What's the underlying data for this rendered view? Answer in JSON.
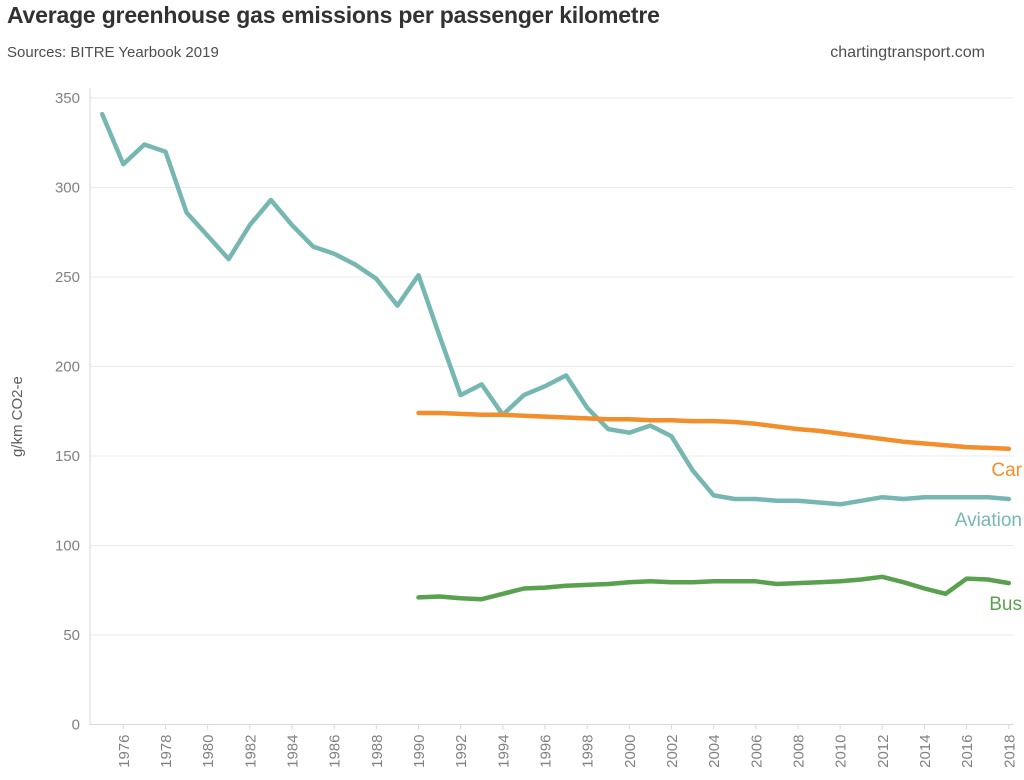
{
  "header": {
    "title": "Average greenhouse gas emissions per passenger kilometre",
    "source": "Sources: BITRE Yearbook 2019",
    "site": "chartingtransport.com"
  },
  "chart_data": {
    "type": "line",
    "title": "Average greenhouse gas emissions per passenger kilometre",
    "xlabel": "",
    "ylabel": "g/km CO2-e",
    "ylim": [
      0,
      355
    ],
    "xlim": [
      1974.5,
      2018.5
    ],
    "grid": "horizontal",
    "legend_position": "end-of-line-labels",
    "yticks": [
      0,
      50,
      100,
      150,
      200,
      250,
      300,
      350
    ],
    "xticks": [
      1976,
      1978,
      1980,
      1982,
      1984,
      1986,
      1988,
      1990,
      1992,
      1994,
      1996,
      1998,
      2000,
      2002,
      2004,
      2006,
      2008,
      2010,
      2012,
      2014,
      2016,
      2018
    ],
    "series": [
      {
        "name": "Aviation",
        "color": "#76b7b2",
        "x": [
          1975,
          1976,
          1977,
          1978,
          1979,
          1980,
          1981,
          1982,
          1983,
          1984,
          1985,
          1986,
          1987,
          1988,
          1989,
          1990,
          1991,
          1992,
          1993,
          1994,
          1995,
          1996,
          1997,
          1998,
          1999,
          2000,
          2001,
          2002,
          2003,
          2004,
          2005,
          2006,
          2007,
          2008,
          2009,
          2010,
          2011,
          2012,
          2013,
          2014,
          2015,
          2016,
          2017,
          2018
        ],
        "values": [
          341,
          313,
          324,
          320,
          286,
          273,
          260,
          279,
          293,
          279,
          267,
          263,
          257,
          249,
          234,
          251,
          217,
          184,
          190,
          173,
          184,
          189,
          195,
          177,
          165,
          163,
          167,
          161,
          142,
          128,
          126,
          126,
          125,
          125,
          124,
          123,
          125,
          127,
          126,
          127,
          127,
          127,
          127,
          126
        ]
      },
      {
        "name": "Car",
        "color": "#f28e2b",
        "x": [
          1990,
          1991,
          1992,
          1993,
          1994,
          1995,
          1996,
          1997,
          1998,
          1999,
          2000,
          2001,
          2002,
          2003,
          2004,
          2005,
          2006,
          2007,
          2008,
          2009,
          2010,
          2011,
          2012,
          2013,
          2014,
          2015,
          2016,
          2017,
          2018
        ],
        "values": [
          174,
          174,
          173.5,
          173,
          173,
          172.5,
          172,
          171.5,
          171,
          170.5,
          170.5,
          170,
          170,
          169.5,
          169.5,
          169,
          168,
          166.5,
          165,
          164,
          162.5,
          161,
          159.5,
          158,
          157,
          156,
          155,
          154.5,
          154
        ]
      },
      {
        "name": "Bus",
        "color": "#59a14f",
        "x": [
          1990,
          1991,
          1992,
          1993,
          1994,
          1995,
          1996,
          1997,
          1998,
          1999,
          2000,
          2001,
          2002,
          2003,
          2004,
          2005,
          2006,
          2007,
          2008,
          2009,
          2010,
          2011,
          2012,
          2013,
          2014,
          2015,
          2016,
          2017,
          2018
        ],
        "values": [
          71,
          71.5,
          70.5,
          70,
          73,
          76,
          76.5,
          77.5,
          78,
          78.5,
          79.5,
          80,
          79.5,
          79.5,
          80,
          80,
          80,
          78.5,
          79,
          79.5,
          80,
          81,
          82.5,
          79.5,
          76,
          73,
          81.5,
          81,
          79
        ]
      }
    ],
    "colors": {
      "aviation": "#76b7b2",
      "car": "#f28e2b",
      "bus": "#59a14f",
      "grid": "#ebebeb",
      "axis": "#d8d8d8",
      "tick_label": "#818181",
      "axis_title": "#5f5f5f"
    }
  }
}
